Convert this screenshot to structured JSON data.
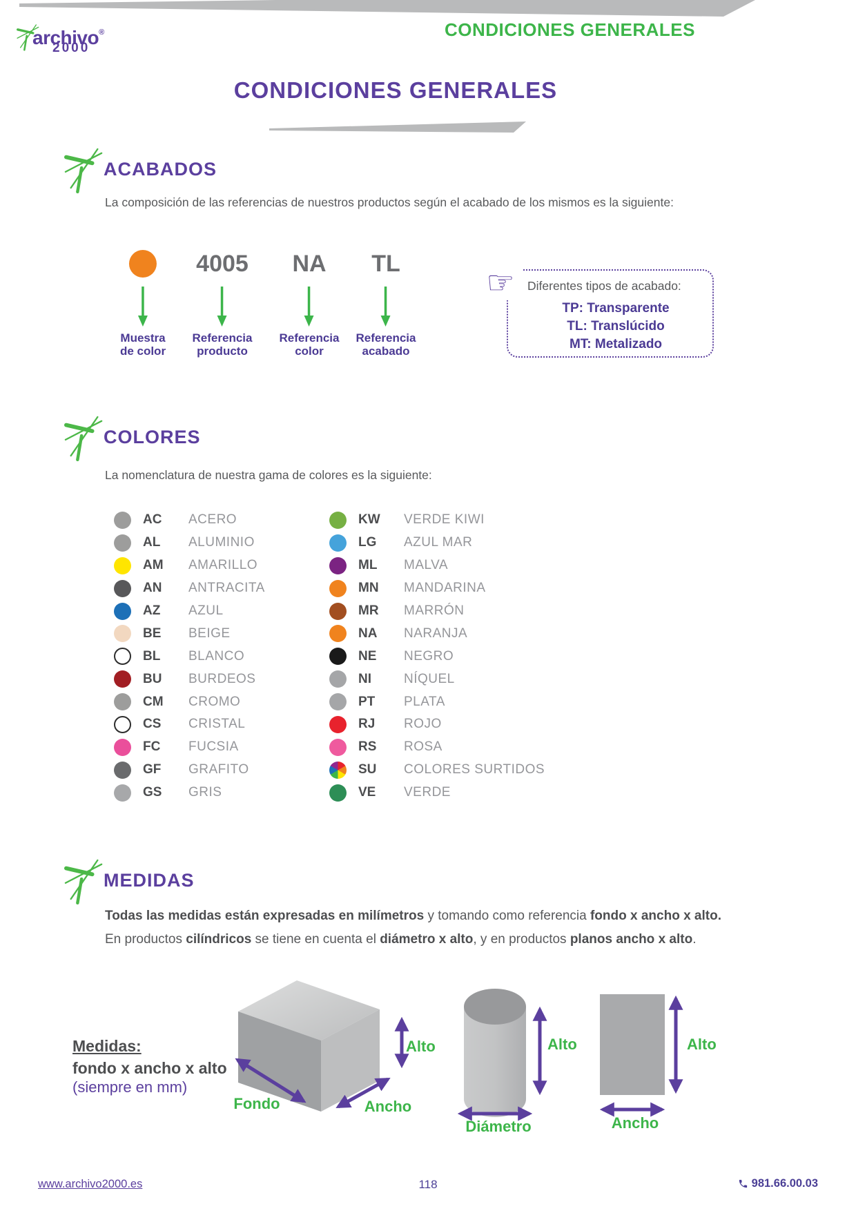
{
  "header": {
    "brand": {
      "name": "archivo",
      "reg": "®",
      "year": "2000"
    },
    "corner_title": "CONDICIONES GENERALES",
    "page_title": "CONDICIONES GENERALES"
  },
  "acabados": {
    "heading": "ACABADOS",
    "intro": "La composición de las referencias de nuestros productos según el acabado de los mismos es la siguiente:",
    "sample_color": "#f0831e",
    "tokens": [
      {
        "type": "swatch",
        "value": "",
        "line1": "Muestra",
        "line2": "de color"
      },
      {
        "type": "text",
        "value": "4005",
        "line1": "Referencia",
        "line2": "producto"
      },
      {
        "type": "text",
        "value": "NA",
        "line1": "Referencia",
        "line2": "color"
      },
      {
        "type": "text",
        "value": "TL",
        "line1": "Referencia",
        "line2": "acabado"
      }
    ],
    "note": {
      "title": "Diferentes tipos de acabado:",
      "items": [
        "TP: Transparente",
        "TL: Translúcido",
        "MT: Metalizado"
      ]
    }
  },
  "colores": {
    "heading": "COLORES",
    "intro": "La nomenclatura de nuestra gama de colores es la siguiente:",
    "left": [
      {
        "code": "AC",
        "name": "ACERO",
        "color": "#9d9d9c"
      },
      {
        "code": "AL",
        "name": "ALUMINIO",
        "color": "#9d9d9c"
      },
      {
        "code": "AM",
        "name": "AMARILLO",
        "color": "#ffe500"
      },
      {
        "code": "AN",
        "name": "ANTRACITA",
        "color": "#58585a"
      },
      {
        "code": "AZ",
        "name": "AZUL",
        "color": "#1d70b7"
      },
      {
        "code": "BE",
        "name": "BEIGE",
        "color": "#f2d8c0"
      },
      {
        "code": "BL",
        "name": "BLANCO",
        "color": "#ffffff",
        "outline": true
      },
      {
        "code": "BU",
        "name": "BURDEOS",
        "color": "#a21e23"
      },
      {
        "code": "CM",
        "name": "CROMO",
        "color": "#9d9d9c"
      },
      {
        "code": "CS",
        "name": "CRISTAL",
        "color": "#ffffff",
        "outline": true
      },
      {
        "code": "FC",
        "name": "FUCSIA",
        "color": "#ea4f9b"
      },
      {
        "code": "GF",
        "name": "GRAFITO",
        "color": "#6a6b6d"
      },
      {
        "code": "GS",
        "name": "GRIS",
        "color": "#a7a8aa"
      }
    ],
    "right": [
      {
        "code": "KW",
        "name": "VERDE KIWI",
        "color": "#76b043"
      },
      {
        "code": "LG",
        "name": "AZUL MAR",
        "color": "#45a3db"
      },
      {
        "code": "ML",
        "name": "MALVA",
        "color": "#7b2382"
      },
      {
        "code": "MN",
        "name": "MANDARINA",
        "color": "#f0831e"
      },
      {
        "code": "MR",
        "name": "MARRÓN",
        "color": "#a24e20"
      },
      {
        "code": "NA",
        "name": "NARANJA",
        "color": "#f0831e"
      },
      {
        "code": "NE",
        "name": "NEGRO",
        "color": "#1a1a1a"
      },
      {
        "code": "NI",
        "name": "NÍQUEL",
        "color": "#a5a6a8"
      },
      {
        "code": "PT",
        "name": "PLATA",
        "color": "#a5a6a8"
      },
      {
        "code": "RJ",
        "name": "ROJO",
        "color": "#e8222d"
      },
      {
        "code": "RS",
        "name": "ROSA",
        "color": "#ef5a9e"
      },
      {
        "code": "SU",
        "name": "COLORES SURTIDOS",
        "color": "rainbow"
      },
      {
        "code": "VE",
        "name": "VERDE",
        "color": "#2d8e56"
      }
    ]
  },
  "medidas": {
    "heading": "MEDIDAS",
    "line1": [
      {
        "t": "Todas las medidas están expresadas en milímetros",
        "b": true
      },
      {
        "t": " y tomando como referencia ",
        "b": false
      },
      {
        "t": "fondo x ancho x alto.",
        "b": true
      }
    ],
    "line2": [
      {
        "t": "En productos ",
        "b": false
      },
      {
        "t": "cilíndricos",
        "b": true
      },
      {
        "t": " se tiene en cuenta el ",
        "b": false
      },
      {
        "t": "diámetro x alto",
        "b": true
      },
      {
        "t": ", y en productos ",
        "b": false
      },
      {
        "t": "planos ancho x alto",
        "b": true
      },
      {
        "t": ".",
        "b": false
      }
    ],
    "legend": {
      "title": "Medidas:",
      "formula": "fondo x ancho x alto",
      "note": "(siempre en mm)"
    },
    "box": {
      "fondo": "Fondo",
      "ancho": "Ancho",
      "alto": "Alto"
    },
    "cylinder": {
      "alto": "Alto",
      "diametro": "Diámetro"
    },
    "plane": {
      "alto": "Alto",
      "ancho": "Ancho"
    }
  },
  "footer": {
    "website": "www.archivo2000.es",
    "page": "118",
    "phone": "981.66.00.03"
  },
  "colors": {
    "purple": "#5b3f9e",
    "green": "#3db54a",
    "orange": "#f0831e",
    "gray_band": "#b9babb"
  }
}
